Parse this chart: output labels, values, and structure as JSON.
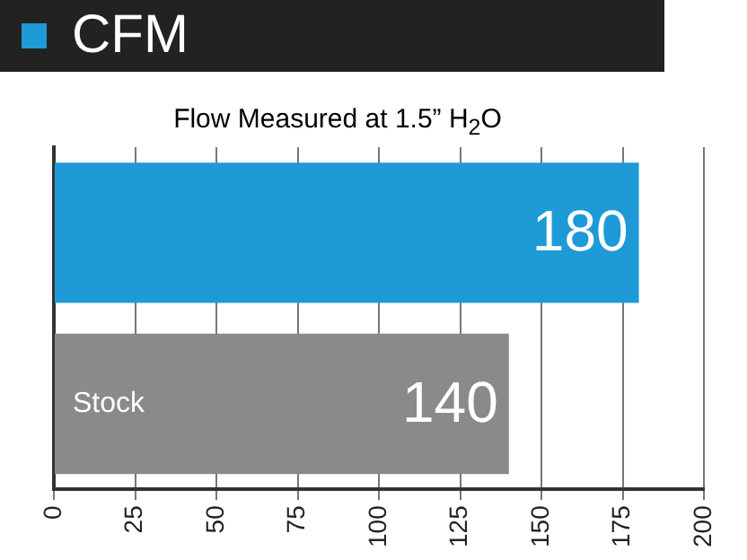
{
  "chart_data": {
    "type": "bar",
    "orientation": "horizontal",
    "title": "CFM",
    "subtitle": "Flow Measured at 1.5” H$_{2}$O",
    "categories": [
      null,
      "Stock"
    ],
    "values": [
      180,
      140
    ],
    "colors": [
      "#1e9ad6",
      "#8a8a8a"
    ],
    "xlim": [
      0,
      200
    ],
    "xticks": [
      0,
      25,
      50,
      75,
      100,
      125,
      150,
      175,
      200
    ],
    "grid": "x",
    "data_labels": true
  }
}
